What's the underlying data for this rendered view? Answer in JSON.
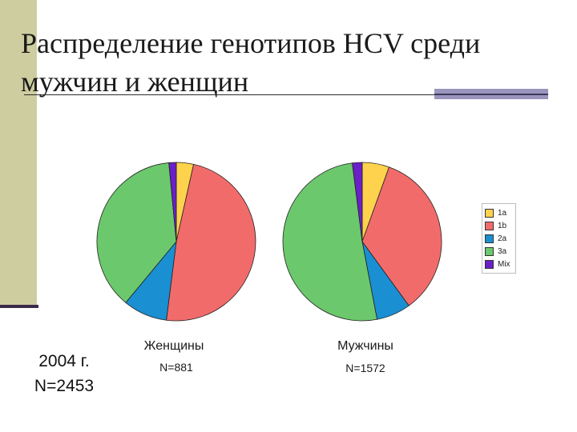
{
  "title_line1": "Распределение генотипов HCV среди",
  "title_line2": "мужчин и женщин",
  "year_line": "2004 г.",
  "total_line": "N=2453",
  "chart_data": [
    {
      "type": "pie",
      "label": "Женщины",
      "n_label": "N=881",
      "categories": [
        "1a",
        "1b",
        "2a",
        "3a",
        "Mix"
      ],
      "values": [
        3.5,
        48.5,
        9.0,
        37.5,
        1.5
      ],
      "colors": [
        "#ffd24d",
        "#f26b6b",
        "#1a8fd1",
        "#6cc86c",
        "#6a1fc9"
      ]
    },
    {
      "type": "pie",
      "label": "Мужчины",
      "n_label": "N=1572",
      "categories": [
        "1a",
        "1b",
        "2a",
        "3a",
        "Mix"
      ],
      "values": [
        5.5,
        34.5,
        7.0,
        51.0,
        2.0
      ],
      "colors": [
        "#ffd24d",
        "#f26b6b",
        "#1a8fd1",
        "#6cc86c",
        "#6a1fc9"
      ]
    }
  ],
  "legend": {
    "placement": "right",
    "items": [
      {
        "label": "1a",
        "color": "#ffd24d"
      },
      {
        "label": "1b",
        "color": "#f26b6b"
      },
      {
        "label": "2a",
        "color": "#1a8fd1"
      },
      {
        "label": "3a",
        "color": "#6cc86c"
      },
      {
        "label": "Mix",
        "color": "#6a1fc9"
      }
    ]
  }
}
